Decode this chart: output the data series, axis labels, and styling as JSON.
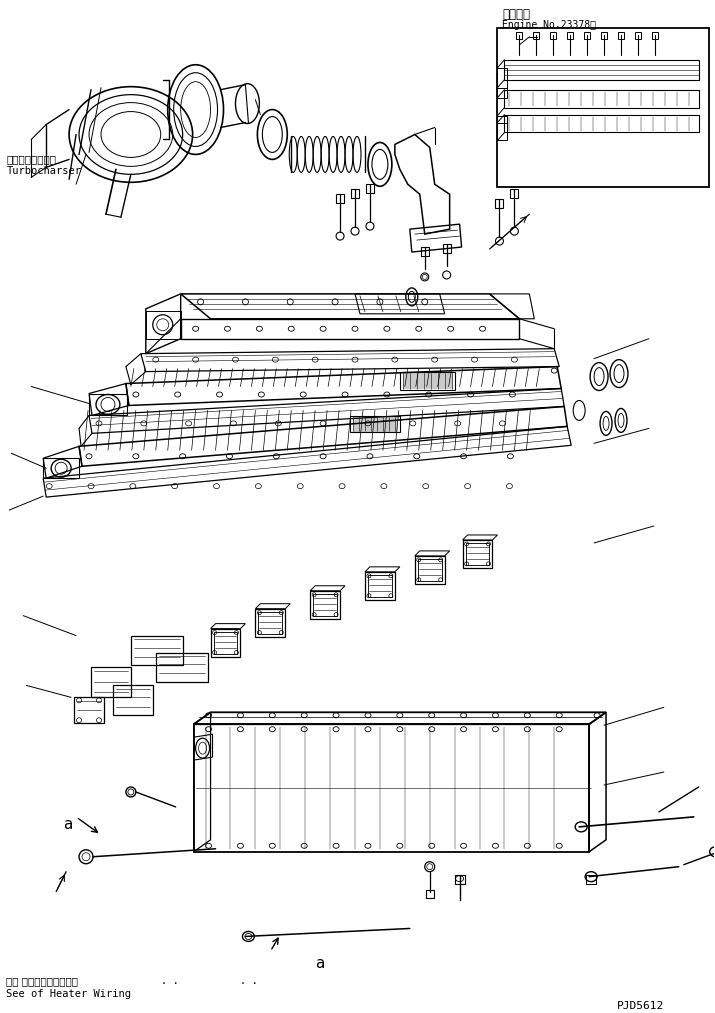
{
  "title_jp": "適用号機",
  "title_en": "Engine No.23378～",
  "label_turbo_jp": "ターボチャージャ",
  "label_turbo_en": "Turbocharser",
  "label_heater_jp": "ヒー タワイヤリング参照",
  "label_heater_en": "See of Heater Wiring",
  "label_a": "a",
  "part_number": "PJD5612",
  "bg_color": "#ffffff",
  "line_color": "#000000",
  "fig_width": 7.15,
  "fig_height": 10.13,
  "dpi": 100
}
